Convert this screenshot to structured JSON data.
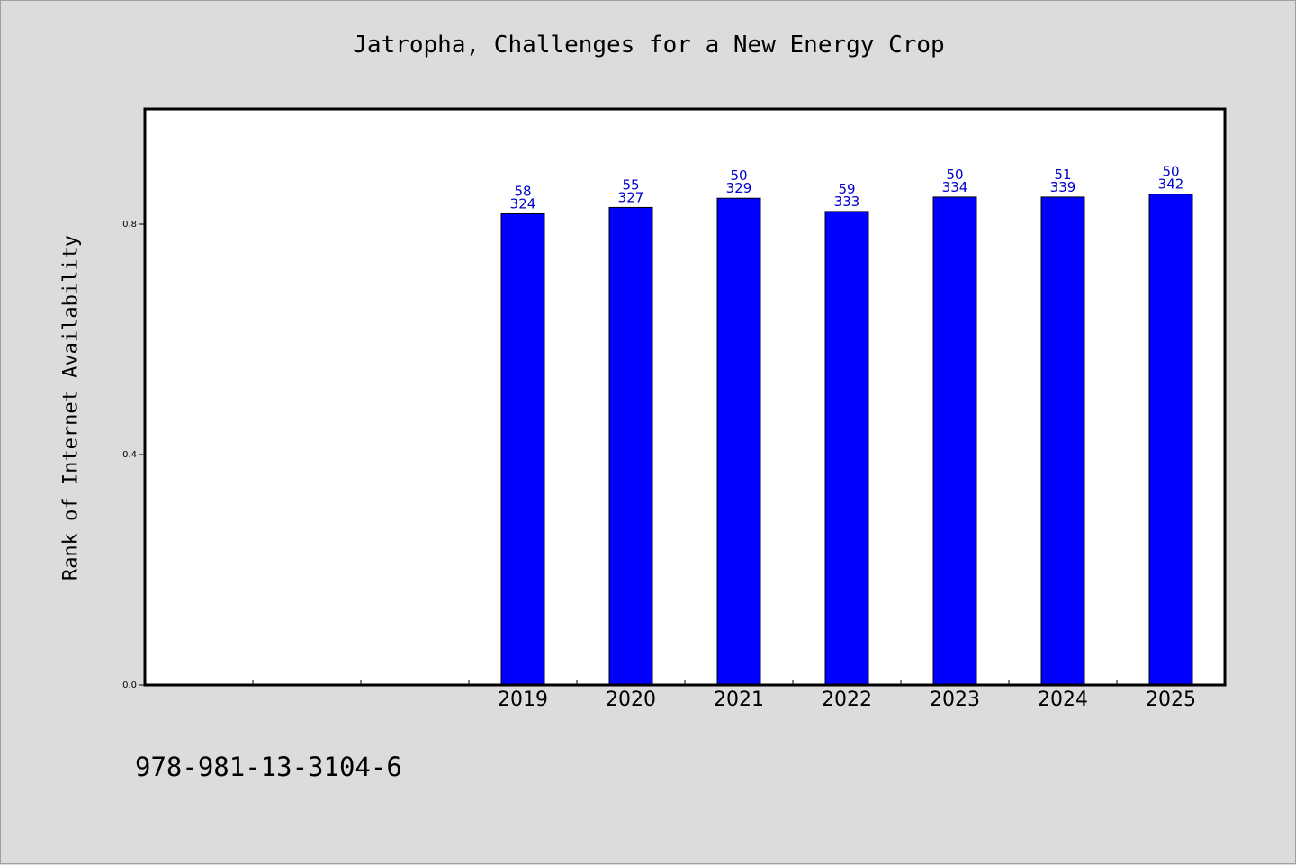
{
  "colors": {
    "background": "#dcdcdc",
    "plot_background": "#ffffff",
    "bar_fill": "#0000ff",
    "bar_stroke": "#000000",
    "data_label": "#0000cc",
    "axis": "#000000"
  },
  "footer": {
    "isbn": "978-981-13-3104-6"
  },
  "chart_data": {
    "type": "bar",
    "title": "Jatropha, Challenges for a New Energy Crop",
    "xlabel": "",
    "ylabel": "Rank of Internet Availability",
    "ylim": [
      0,
      1.0
    ],
    "yticks": [
      0.0,
      0.4,
      0.8
    ],
    "ytick_labels": [
      "0.0",
      "0.4",
      "0.8"
    ],
    "grid": false,
    "legend": "none",
    "slots": 10,
    "categories": [
      "2019",
      "2020",
      "2021",
      "2022",
      "2023",
      "2024",
      "2025"
    ],
    "category_slots": [
      3,
      4,
      5,
      6,
      7,
      8,
      9
    ],
    "values": [
      0.818,
      0.829,
      0.845,
      0.822,
      0.847,
      0.847,
      0.852
    ],
    "data_labels_top": [
      "58",
      "55",
      "50",
      "59",
      "50",
      "51",
      "50"
    ],
    "data_labels_bottom": [
      "324",
      "327",
      "329",
      "333",
      "334",
      "339",
      "342"
    ]
  }
}
